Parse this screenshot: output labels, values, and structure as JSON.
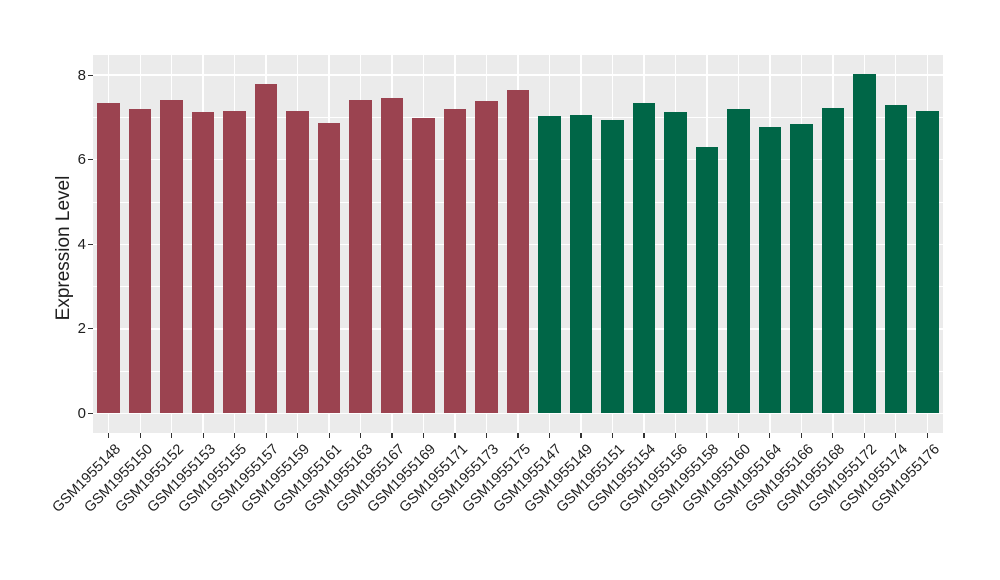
{
  "chart_data": {
    "type": "bar",
    "title": "",
    "xlabel": "",
    "ylabel": "Expression Level",
    "ylim": [
      -0.46,
      8.47
    ],
    "y_ticks": [
      0,
      2,
      4,
      6,
      8
    ],
    "y_minor_ticks": [
      1,
      3,
      5,
      7
    ],
    "legend": "none",
    "grid": "on",
    "panel_background": "#EBEBEB",
    "gridline_color": "#FFFFFF",
    "tick_mark_color": "#333333",
    "text_color": "#1F1F1F",
    "group_colors": {
      "group1": "#9B4350",
      "group2": "#006647"
    },
    "bars": [
      {
        "label": "GSM1955148",
        "value": 7.34,
        "group": "group1"
      },
      {
        "label": "GSM1955150",
        "value": 7.21,
        "group": "group1"
      },
      {
        "label": "GSM1955152",
        "value": 7.42,
        "group": "group1"
      },
      {
        "label": "GSM1955153",
        "value": 7.12,
        "group": "group1"
      },
      {
        "label": "GSM1955155",
        "value": 7.16,
        "group": "group1"
      },
      {
        "label": "GSM1955157",
        "value": 7.8,
        "group": "group1"
      },
      {
        "label": "GSM1955159",
        "value": 7.15,
        "group": "group1"
      },
      {
        "label": "GSM1955161",
        "value": 6.87,
        "group": "group1"
      },
      {
        "label": "GSM1955163",
        "value": 7.42,
        "group": "group1"
      },
      {
        "label": "GSM1955167",
        "value": 7.46,
        "group": "group1"
      },
      {
        "label": "GSM1955169",
        "value": 6.98,
        "group": "group1"
      },
      {
        "label": "GSM1955171",
        "value": 7.19,
        "group": "group1"
      },
      {
        "label": "GSM1955173",
        "value": 7.39,
        "group": "group1"
      },
      {
        "label": "GSM1955175",
        "value": 7.64,
        "group": "group1"
      },
      {
        "label": "GSM1955147",
        "value": 7.03,
        "group": "group2"
      },
      {
        "label": "GSM1955149",
        "value": 7.06,
        "group": "group2"
      },
      {
        "label": "GSM1955151",
        "value": 6.93,
        "group": "group2"
      },
      {
        "label": "GSM1955154",
        "value": 7.33,
        "group": "group2"
      },
      {
        "label": "GSM1955156",
        "value": 7.12,
        "group": "group2"
      },
      {
        "label": "GSM1955158",
        "value": 6.3,
        "group": "group2"
      },
      {
        "label": "GSM1955160",
        "value": 7.2,
        "group": "group2"
      },
      {
        "label": "GSM1955164",
        "value": 6.77,
        "group": "group2"
      },
      {
        "label": "GSM1955166",
        "value": 6.84,
        "group": "group2"
      },
      {
        "label": "GSM1955168",
        "value": 7.22,
        "group": "group2"
      },
      {
        "label": "GSM1955172",
        "value": 8.03,
        "group": "group2"
      },
      {
        "label": "GSM1955174",
        "value": 7.3,
        "group": "group2"
      },
      {
        "label": "GSM1955176",
        "value": 7.15,
        "group": "group2"
      }
    ]
  }
}
